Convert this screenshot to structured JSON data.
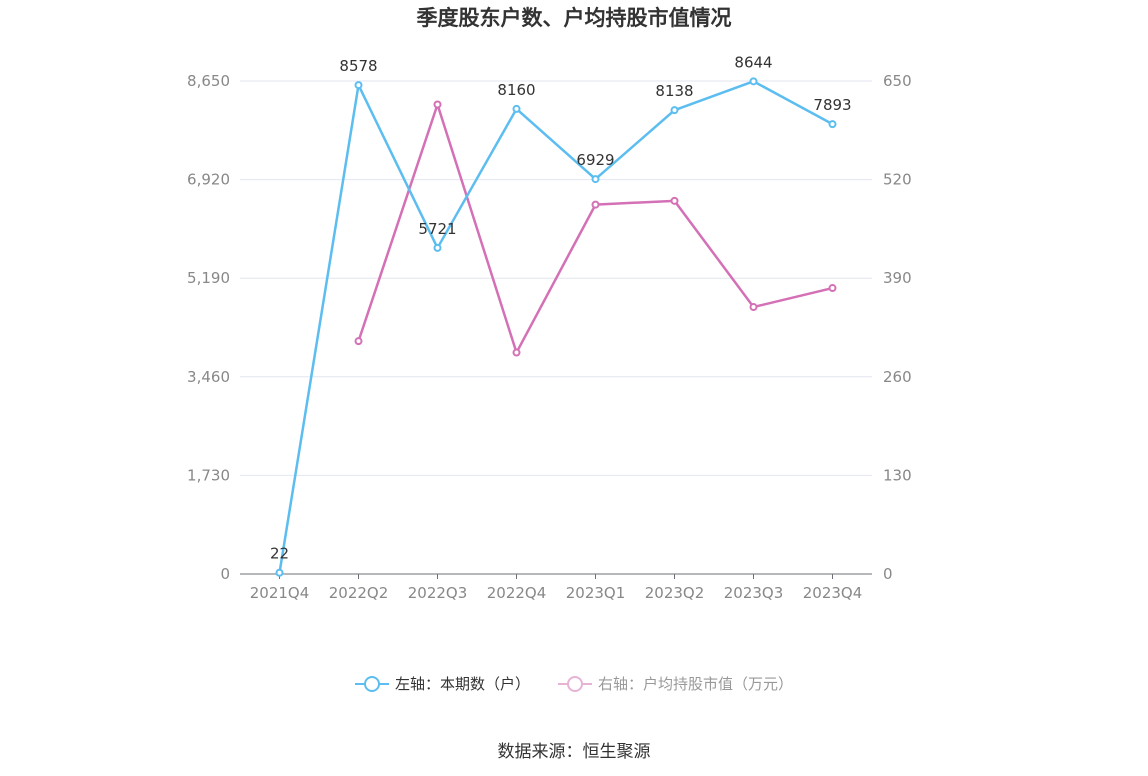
{
  "chart_data": {
    "type": "line",
    "title": "季度股东户数、户均持股市值情况",
    "categories": [
      "2021Q4",
      "2022Q2",
      "2022Q3",
      "2022Q4",
      "2023Q1",
      "2023Q2",
      "2023Q3",
      "2023Q4"
    ],
    "left_axis": {
      "ticks": [
        "0",
        "1,730",
        "3,460",
        "5,190",
        "6,920",
        "8,650"
      ],
      "ylim": [
        0,
        8650
      ]
    },
    "right_axis": {
      "ticks": [
        "0",
        "130",
        "260",
        "390",
        "520",
        "650"
      ],
      "ylim": [
        0,
        650
      ]
    },
    "series": [
      {
        "name": "左轴：本期数（户）",
        "axis": "left",
        "color": "#5bbdf0",
        "values": [
          22,
          8578,
          5721,
          8160,
          6929,
          8138,
          8644,
          7893
        ],
        "show_labels": true
      },
      {
        "name": "右轴：户均持股市值（万元）",
        "axis": "right",
        "color": "#d470b5",
        "values": [
          null,
          307,
          619,
          292,
          487,
          492,
          352,
          377
        ],
        "show_labels": false
      }
    ],
    "grid": true,
    "legend": "bottom"
  },
  "legend": {
    "left_label": "左轴：本期数（户）",
    "right_label": "右轴：户均持股市值（万元）"
  },
  "source": "数据来源：恒生聚源"
}
